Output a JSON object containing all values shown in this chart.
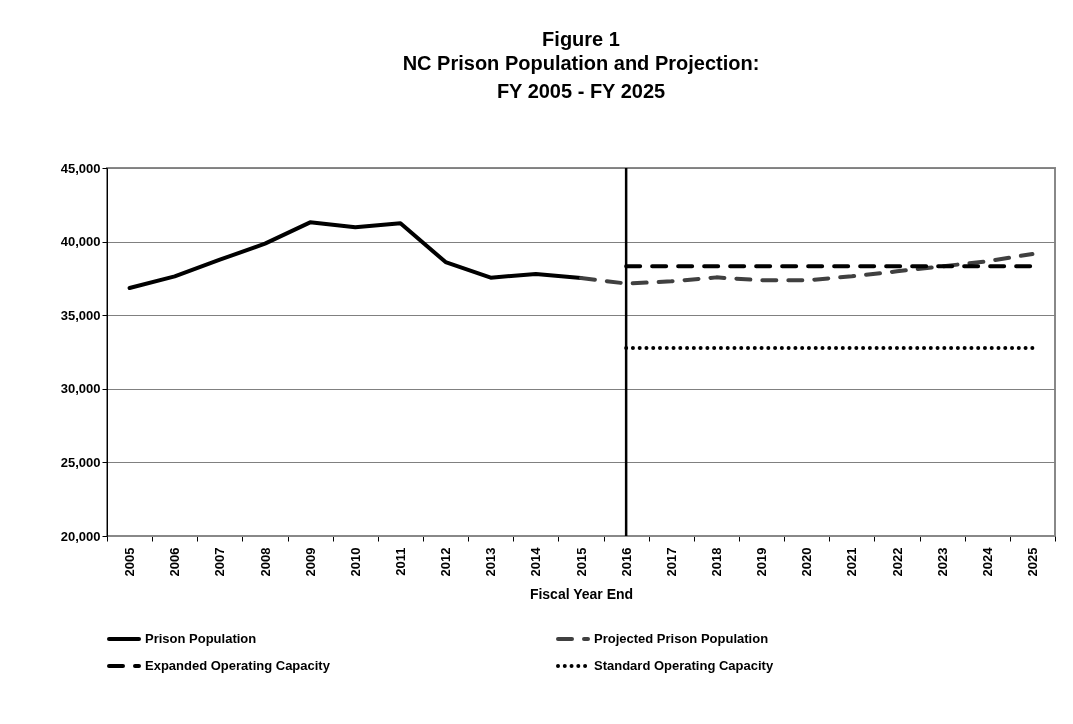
{
  "chart_data": {
    "type": "line",
    "title": "Figure 1",
    "subtitle": "NC Prison Population and Projection:\nFY 2005 - FY 2025",
    "xlabel": "Fiscal Year End",
    "categories": [
      "2005",
      "2006",
      "2007",
      "2008",
      "2009",
      "2010",
      "2011",
      "2012",
      "2013",
      "2014",
      "2015",
      "2016",
      "2017",
      "2018",
      "2019",
      "2020",
      "2021",
      "2022",
      "2023",
      "2024",
      "2025"
    ],
    "series": [
      {
        "name": "Prison Population",
        "color": "#000000",
        "line_style": "solid",
        "values": [
          36850,
          37640,
          38770,
          39860,
          41310,
          40970,
          41240,
          38610,
          37550,
          37800,
          37530,
          null,
          null,
          null,
          null,
          null,
          null,
          null,
          null,
          null,
          null
        ]
      },
      {
        "name": "Projected Prison Population",
        "color": "#404040",
        "line_style": "dashed",
        "values": [
          null,
          null,
          null,
          null,
          null,
          null,
          null,
          null,
          null,
          null,
          37530,
          37150,
          37300,
          37570,
          37370,
          37370,
          37640,
          37980,
          38320,
          38660,
          39160
        ]
      },
      {
        "name": "Expanded Operating Capacity",
        "color": "#000000",
        "line_style": "dashed",
        "values": [
          null,
          null,
          null,
          null,
          null,
          null,
          null,
          null,
          null,
          null,
          null,
          38320,
          38320,
          38320,
          38320,
          38320,
          38320,
          38320,
          38320,
          38320,
          38320
        ]
      },
      {
        "name": "Standard Operating Capacity",
        "color": "#000000",
        "line_style": "dotted",
        "values": [
          null,
          null,
          null,
          null,
          null,
          null,
          null,
          null,
          null,
          null,
          null,
          32770,
          32770,
          32770,
          32770,
          32770,
          32770,
          32770,
          32770,
          32770,
          32770
        ]
      }
    ],
    "ylim": [
      20000,
      45000
    ],
    "yticks": [
      {
        "value": 20000,
        "label": "20,000"
      },
      {
        "value": 25000,
        "label": "25,000"
      },
      {
        "value": 30000,
        "label": "30,000"
      },
      {
        "value": 35000,
        "label": "35,000"
      },
      {
        "value": 40000,
        "label": "40,000"
      },
      {
        "value": 45000,
        "label": "45,000"
      }
    ],
    "grid": "y",
    "legend": "bottom",
    "ref_lines": [
      {
        "axis": "x",
        "value": "2016",
        "color": "#000000"
      }
    ]
  }
}
